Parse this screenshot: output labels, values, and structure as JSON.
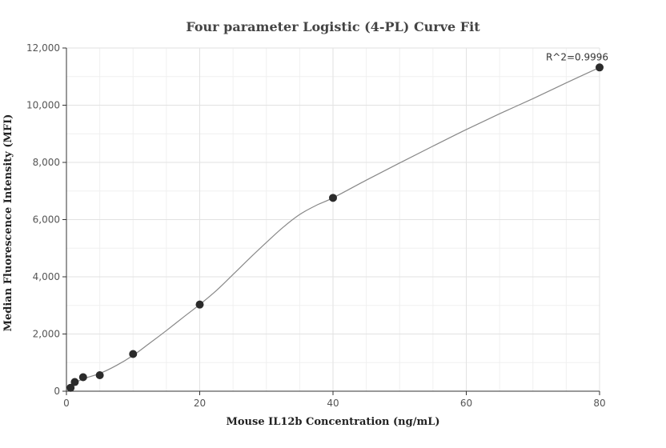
{
  "chart_data": {
    "type": "scatter",
    "title": "Four parameter Logistic (4-PL) Curve Fit",
    "xlabel": "Mouse IL12b Concentration (ng/mL)",
    "ylabel": "Median Fluorescence Intensity (MFI)",
    "xlim": [
      0,
      80
    ],
    "ylim": [
      0,
      12000
    ],
    "xticks": [
      0,
      20,
      40,
      60,
      80
    ],
    "xtick_labels": [
      "0",
      "20",
      "40",
      "60",
      "80"
    ],
    "yticks": [
      0,
      2000,
      4000,
      6000,
      8000,
      10000,
      12000
    ],
    "ytick_labels": [
      "0",
      "2,000",
      "4,000",
      "6,000",
      "8,000",
      "10,000",
      "12,000"
    ],
    "grid": true,
    "points": {
      "x": [
        0.625,
        1.25,
        2.5,
        5,
        10,
        20,
        40,
        80
      ],
      "y": [
        120,
        320,
        490,
        560,
        1300,
        3030,
        6760,
        11320
      ]
    },
    "fit_curve": {
      "x": [
        0,
        1,
        2.5,
        5,
        7.5,
        10,
        12.5,
        15,
        17.5,
        20,
        22.5,
        25,
        27.5,
        30,
        32.5,
        35,
        37.5,
        40,
        45,
        50,
        55,
        60,
        65,
        70,
        75,
        80
      ],
      "y": [
        80,
        250,
        430,
        620,
        900,
        1250,
        1680,
        2120,
        2580,
        3030,
        3520,
        4080,
        4650,
        5200,
        5730,
        6180,
        6500,
        6760,
        7380,
        7980,
        8570,
        9150,
        9700,
        10230,
        10780,
        11320
      ]
    },
    "annotation": "R^2=0.9996",
    "colors": {
      "points": "#2b2b2b",
      "curve": "#888888",
      "grid": "#e2e2e2"
    }
  }
}
